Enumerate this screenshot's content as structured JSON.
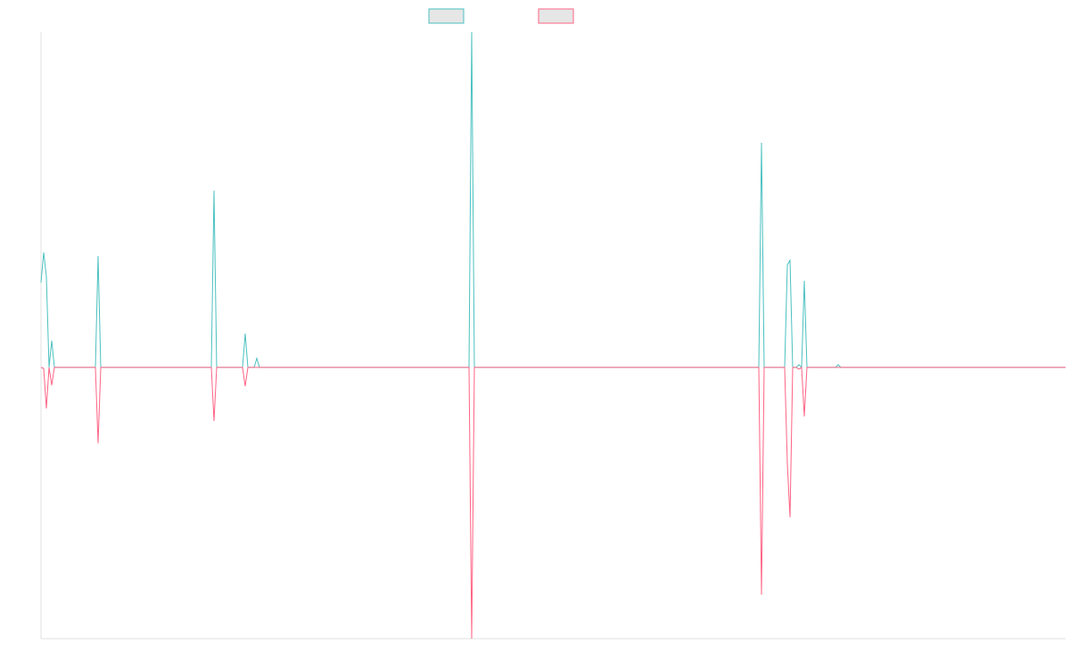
{
  "chart_data": {
    "type": "line",
    "x": [
      0,
      3,
      6,
      9,
      12,
      15,
      61,
      64,
      67,
      181,
      191,
      194,
      197,
      226,
      229,
      232,
      239,
      242,
      245,
      480,
      483,
      486,
      579,
      792,
      805,
      808,
      811,
      834,
      837,
      840,
      843,
      847,
      850,
      853,
      856,
      859,
      891,
      894,
      897,
      1149
    ],
    "xlim": [
      0,
      1149
    ],
    "ylim": [
      -8.09,
      10
    ],
    "series": [
      {
        "color": "#4bc0c0",
        "values": [
          2.53,
          3.43,
          2.71,
          0,
          0.8,
          0,
          0,
          3.32,
          0,
          0,
          0,
          5.27,
          0,
          0,
          1.01,
          0,
          0,
          0.27,
          0,
          0,
          10,
          0,
          0,
          0,
          0,
          6.7,
          0,
          0,
          3.06,
          3.19,
          0,
          0,
          0.08,
          0,
          2.58,
          0,
          0,
          0.08,
          0,
          0
        ]
      },
      {
        "color": "#ff6384",
        "values": [
          0,
          -0.03,
          -1.22,
          0,
          -0.53,
          0,
          0,
          -2.26,
          0,
          0,
          0,
          -1.6,
          0,
          0,
          -0.56,
          0,
          0,
          0,
          0,
          0,
          -8.09,
          0,
          0,
          0,
          0,
          -6.78,
          0,
          0,
          -2.87,
          -4.47,
          0,
          0,
          -0.05,
          0,
          -1.46,
          0,
          0,
          0,
          0,
          0
        ]
      }
    ]
  }
}
